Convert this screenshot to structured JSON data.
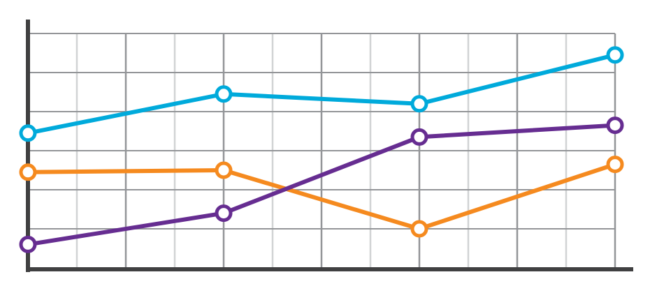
{
  "chart_data": {
    "type": "line",
    "title": "",
    "xlabel": "",
    "ylabel": "",
    "x": [
      0,
      1,
      2,
      3
    ],
    "xlim": [
      0,
      3
    ],
    "ylim": [
      0,
      6
    ],
    "grid": true,
    "legend": "none",
    "series": [
      {
        "color": "#00AADB",
        "values": [
          3.45,
          4.45,
          4.2,
          5.45
        ]
      },
      {
        "color": "#F58A1F",
        "values": [
          2.45,
          2.5,
          1.0,
          2.65
        ]
      },
      {
        "color": "#662D91",
        "values": [
          0.6,
          1.4,
          3.35,
          3.65
        ]
      }
    ],
    "colors": {
      "axis": "#404041",
      "grid_major": "#939598",
      "grid_minor": "#D1D3D4",
      "marker_fill": "#FFFFFF"
    }
  }
}
